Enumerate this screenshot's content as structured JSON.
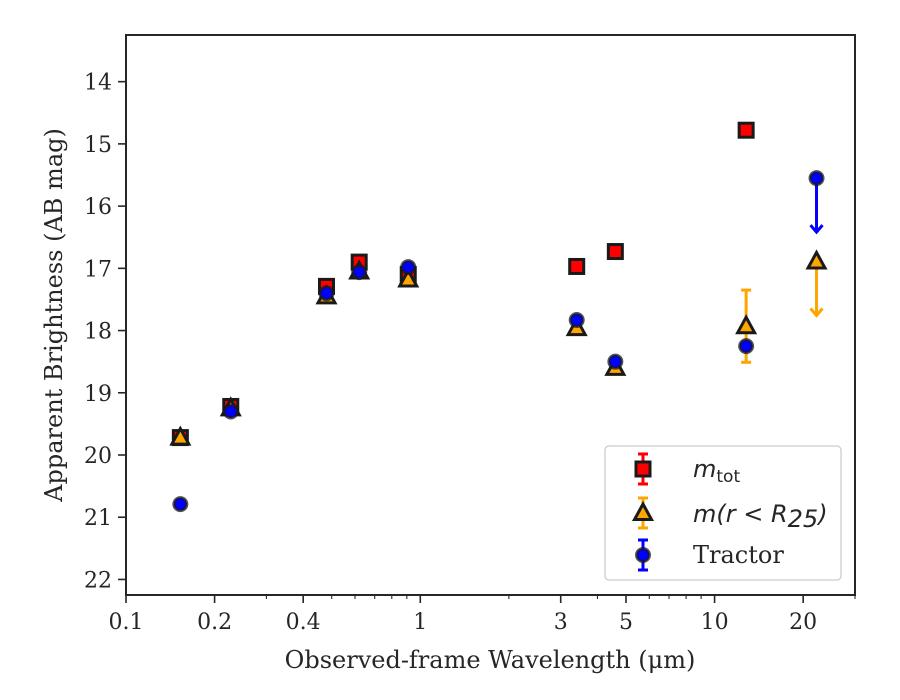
{
  "chart_data": {
    "type": "scatter",
    "title": "",
    "xlabel": "Observed-frame Wavelength (μm)",
    "ylabel": "Apparent Brightness (AB mag)",
    "xscale": "log",
    "xlim": [
      0.1,
      30
    ],
    "ylim": [
      22.25,
      13.25
    ],
    "y_inverted": true,
    "grid": false,
    "legend_position": "lower-right",
    "x_tick_labels": [
      "0.1",
      "0.2",
      "0.4",
      "1",
      "3",
      "5",
      "10",
      "20"
    ],
    "y_tick_labels": [
      "14",
      "15",
      "16",
      "17",
      "18",
      "19",
      "20",
      "21",
      "22"
    ],
    "series": [
      {
        "name": "m_tot",
        "legend_main": "m",
        "legend_sub": "tot",
        "marker": "square",
        "color": "#ff0000",
        "edge_color": "#1a1a1a",
        "x": [
          0.153,
          0.227,
          0.48,
          0.62,
          0.91,
          3.4,
          4.6,
          12.8
        ],
        "y": [
          19.72,
          19.22,
          17.29,
          16.9,
          17.1,
          16.97,
          16.73,
          14.78
        ]
      },
      {
        "name": "m(r < R25)",
        "legend_main": "m(r < R",
        "legend_sub": "25",
        "legend_tail": ")",
        "marker": "triangle",
        "color": "#ffa500",
        "edge_color": "#1a1a1a",
        "x": [
          0.153,
          0.227,
          0.48,
          0.62,
          0.91,
          3.4,
          4.6,
          12.8,
          22.2
        ],
        "y": [
          19.72,
          19.25,
          17.45,
          17.05,
          17.18,
          17.96,
          18.6,
          17.93,
          16.89
        ],
        "errors": [
          null,
          null,
          null,
          null,
          null,
          null,
          null,
          0.58,
          null
        ],
        "upper_limits": [
          false,
          false,
          false,
          false,
          false,
          false,
          false,
          false,
          true
        ]
      },
      {
        "name": "Tractor",
        "marker": "circle",
        "color": "#0000ff",
        "edge_color": "#1a1a1a",
        "x": [
          0.153,
          0.227,
          0.48,
          0.62,
          0.91,
          3.4,
          4.6,
          12.8,
          22.2
        ],
        "y": [
          20.79,
          19.3,
          17.4,
          17.06,
          16.98,
          17.83,
          18.5,
          18.25,
          15.55
        ],
        "upper_limits": [
          false,
          false,
          false,
          false,
          false,
          false,
          false,
          false,
          true
        ]
      }
    ]
  }
}
